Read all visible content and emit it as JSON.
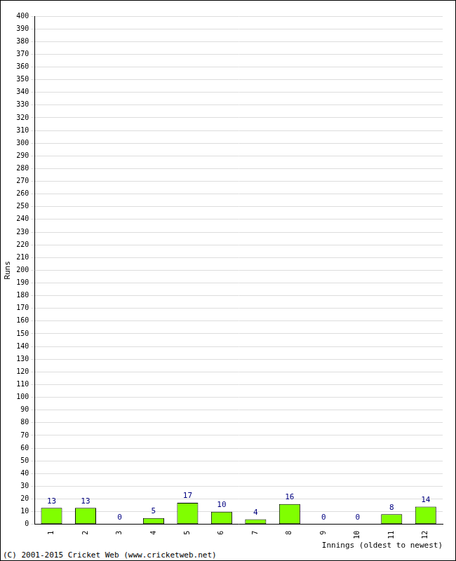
{
  "chart_data": {
    "type": "bar",
    "categories": [
      "1",
      "2",
      "3",
      "4",
      "5",
      "6",
      "7",
      "8",
      "9",
      "10",
      "11",
      "12"
    ],
    "values": [
      13,
      13,
      0,
      5,
      17,
      10,
      4,
      16,
      0,
      0,
      8,
      14
    ],
    "color": "#80ff00",
    "x_label": "Innings (oldest to newest)",
    "y_label": "Runs",
    "ylim": [
      0,
      400
    ],
    "yticks": [
      0,
      10,
      20,
      30,
      40,
      50,
      60,
      70,
      80,
      90,
      100,
      110,
      120,
      130,
      140,
      150,
      160,
      170,
      180,
      190,
      200,
      210,
      220,
      230,
      240,
      250,
      260,
      270,
      280,
      290,
      300,
      310,
      320,
      330,
      340,
      350,
      360,
      370,
      380,
      390,
      400
    ],
    "grid": true,
    "data_labels": true,
    "annotations": [
      "(C) 2001-2015 Cricket Web (www.cricketweb.net)"
    ]
  }
}
